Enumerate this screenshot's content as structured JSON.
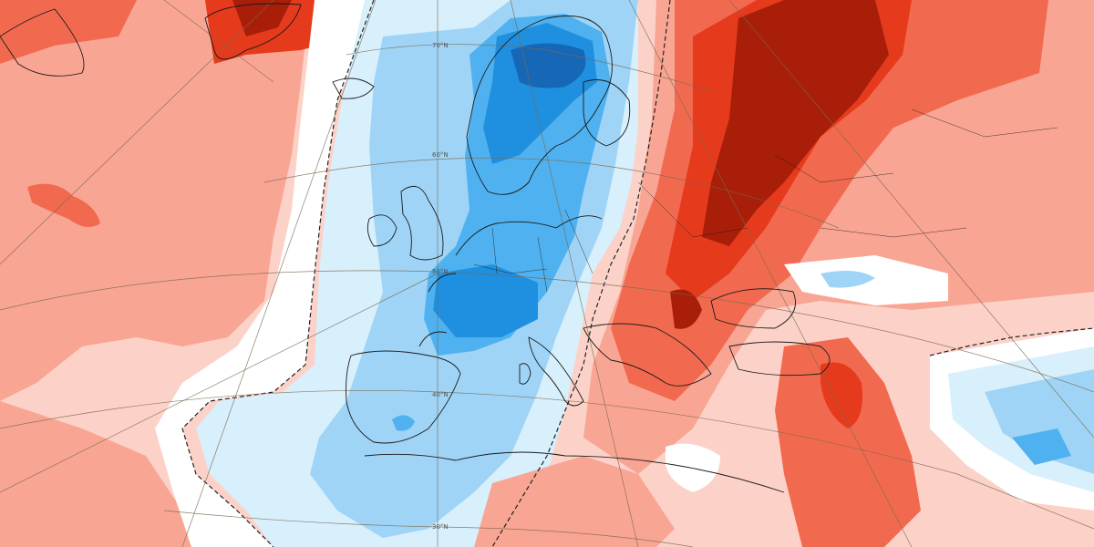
{
  "map": {
    "latitude_labels": [
      "70°N",
      "60°N",
      "50°N",
      "40°N",
      "30°N"
    ],
    "palette": {
      "warm_light": "#fcd2c8",
      "warm_mid": "#f9a594",
      "warm_strong": "#f16a4f",
      "warm_deep": "#e63a1c",
      "warm_extreme": "#a81e08",
      "neutral": "#ffffff",
      "cold_light": "#d8effc",
      "cold_mid": "#9fd4f6",
      "cold_strong": "#4fb1ef",
      "cold_deep": "#1f8fe0",
      "cold_extreme": "#1668b6"
    }
  }
}
